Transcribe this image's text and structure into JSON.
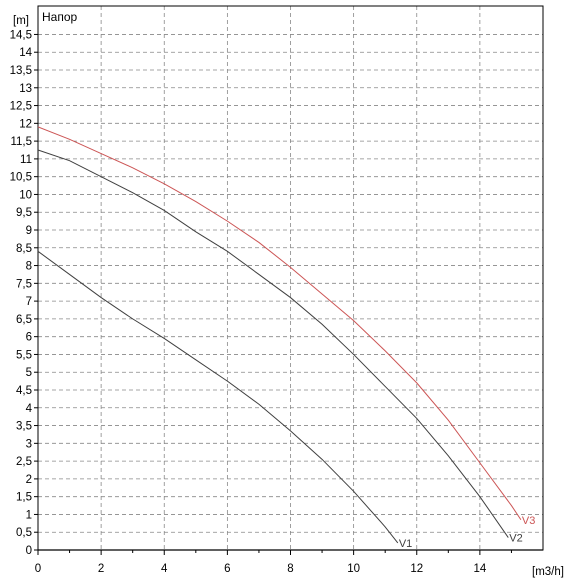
{
  "chart_data": {
    "type": "line",
    "title": "Напор",
    "xlabel": "[m3/h]",
    "ylabel": "[m]",
    "xlim": [
      0,
      16
    ],
    "ylim": [
      0,
      15.3
    ],
    "x_ticks": [
      0,
      2,
      4,
      6,
      8,
      10,
      12,
      14
    ],
    "y_ticks": [
      0,
      0.5,
      1,
      1.5,
      2,
      2.5,
      3,
      3.5,
      4,
      4.5,
      5,
      5.5,
      6,
      6.5,
      7,
      7.5,
      8,
      8.5,
      9,
      9.5,
      10,
      10.5,
      11,
      11.5,
      12,
      12.5,
      13,
      13.5,
      14,
      14.5
    ],
    "y_tick_labels": [
      "0",
      "0,5",
      "1",
      "1,5",
      "2",
      "2,5",
      "3",
      "3,5",
      "4",
      "4,5",
      "5",
      "5,5",
      "6",
      "6,5",
      "7",
      "7,5",
      "8",
      "8,5",
      "9",
      "9,5",
      "10",
      "10,5",
      "11",
      "11,5",
      "12",
      "12,5",
      "13",
      "13,5",
      "14",
      "14,5"
    ],
    "grid": true,
    "series": [
      {
        "name": "V1",
        "color": "#404040",
        "x": [
          0,
          1,
          2,
          3,
          4,
          5,
          6,
          7,
          8,
          9,
          10,
          11,
          11.4
        ],
        "y": [
          8.4,
          7.75,
          7.1,
          6.5,
          5.95,
          5.35,
          4.75,
          4.1,
          3.35,
          2.55,
          1.65,
          0.65,
          0.2
        ]
      },
      {
        "name": "V2",
        "color": "#404040",
        "x": [
          0,
          1,
          2,
          3,
          4,
          5,
          6,
          7,
          8,
          9,
          10,
          11,
          12,
          13,
          14,
          14.9
        ],
        "y": [
          11.25,
          10.95,
          10.5,
          10.05,
          9.55,
          8.95,
          8.4,
          7.75,
          7.1,
          6.35,
          5.5,
          4.6,
          3.7,
          2.65,
          1.5,
          0.35
        ]
      },
      {
        "name": "V3",
        "color": "#cc5555",
        "x": [
          0,
          1,
          2,
          3,
          4,
          5,
          6,
          7,
          8,
          9,
          10,
          11,
          12,
          13,
          14,
          15,
          15.3
        ],
        "y": [
          11.9,
          11.55,
          11.15,
          10.75,
          10.3,
          9.8,
          9.25,
          8.65,
          7.95,
          7.2,
          6.45,
          5.6,
          4.7,
          3.65,
          2.45,
          1.25,
          0.85
        ]
      }
    ]
  }
}
